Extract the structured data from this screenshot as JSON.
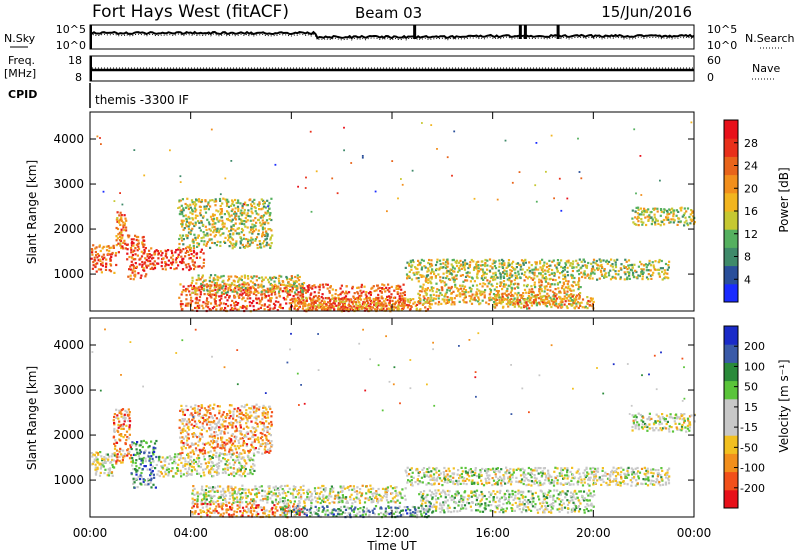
{
  "header": {
    "title": "Fort Hays West (fitACF)",
    "beam": "Beam 03",
    "date": "15/Jun/2016"
  },
  "top_panels": {
    "nsky_label": "N.Sky",
    "nsky_ticks": [
      "10^5",
      "10^0"
    ],
    "nsearch_label": "N.Search",
    "nsearch_ticks": [
      "10^5",
      "10^0"
    ],
    "freq_label_1": "Freq.",
    "freq_label_2": "[MHz]",
    "freq_ticks": [
      "18",
      "8"
    ],
    "nave_label": "Nave",
    "nave_ticks": [
      "60",
      "0"
    ],
    "cpid_label": "CPID",
    "cpid_text": "themis -3300 IF"
  },
  "chart_data": [
    {
      "type": "heatmap",
      "name": "power",
      "ylabel": "Slant Range [km]",
      "ylim": [
        180,
        4600
      ],
      "yticks": [
        1000,
        2000,
        3000,
        4000
      ],
      "xlim_hours": [
        0,
        24
      ],
      "colorbar_label": "Power [dB]",
      "colorbar_ticks": [
        "4",
        "8",
        "12",
        "16",
        "20",
        "24",
        "28"
      ],
      "colorbar_colors": [
        "#1a2bff",
        "#2a4f9a",
        "#3f8a6a",
        "#55b05f",
        "#c6c832",
        "#f2b51f",
        "#f28f1c",
        "#e8641a",
        "#e8301a",
        "#e8101a"
      ],
      "regions": [
        {
          "t0": 0.0,
          "t1": 1.0,
          "r0": 1050,
          "r1": 1700,
          "level": 0.75
        },
        {
          "t0": 1.0,
          "t1": 1.4,
          "r0": 1500,
          "r1": 2400,
          "level": 0.7
        },
        {
          "t0": 1.4,
          "t1": 2.2,
          "r0": 900,
          "r1": 1900,
          "level": 0.8
        },
        {
          "t0": 2.2,
          "t1": 4.5,
          "r0": 1100,
          "r1": 1600,
          "level": 0.85
        },
        {
          "t0": 3.5,
          "t1": 7.2,
          "r0": 1600,
          "r1": 2700,
          "level": 0.45
        },
        {
          "t0": 3.5,
          "t1": 12.5,
          "r0": 200,
          "r1": 800,
          "level": 0.8
        },
        {
          "t0": 4.0,
          "t1": 8.5,
          "r0": 600,
          "r1": 1000,
          "level": 0.5
        },
        {
          "t0": 8.0,
          "t1": 13.5,
          "r0": 200,
          "r1": 500,
          "level": 0.65
        },
        {
          "t0": 12.5,
          "t1": 23.0,
          "r0": 900,
          "r1": 1350,
          "level": 0.45
        },
        {
          "t0": 13.0,
          "t1": 19.5,
          "r0": 350,
          "r1": 900,
          "level": 0.55
        },
        {
          "t0": 16.0,
          "t1": 20.0,
          "r0": 250,
          "r1": 550,
          "level": 0.6
        },
        {
          "t0": 21.5,
          "t1": 24.0,
          "r0": 2100,
          "r1": 2500,
          "level": 0.45
        }
      ]
    },
    {
      "type": "heatmap",
      "name": "velocity",
      "ylabel": "Slant Range [km]",
      "ylim": [
        180,
        4600
      ],
      "yticks": [
        1000,
        2000,
        3000,
        4000
      ],
      "xlim_hours": [
        0,
        24
      ],
      "xticks": [
        "00:00",
        "04:00",
        "08:00",
        "12:00",
        "16:00",
        "20:00",
        "00:00"
      ],
      "xlabel": "Time UT",
      "colorbar_label": "Velocity [m s⁻¹]",
      "colorbar_ticks": [
        "-200",
        "-100",
        "-50",
        "-15",
        "15",
        "50",
        "100",
        "200"
      ],
      "colorbar_colors": [
        "#e8101a",
        "#f2501a",
        "#f28f1c",
        "#f2c020",
        "#c8c8c8",
        "#c8c8c8",
        "#5ac43a",
        "#2a8a3a",
        "#3a5aa8",
        "#1a2bc8"
      ],
      "regions": [
        {
          "t0": 0.0,
          "t1": 1.0,
          "r0": 1100,
          "r1": 1650,
          "level": 0.5
        },
        {
          "t0": 0.9,
          "t1": 1.6,
          "r0": 1400,
          "r1": 2600,
          "level": 0.25
        },
        {
          "t0": 1.6,
          "t1": 2.6,
          "r0": 850,
          "r1": 1900,
          "level": 0.72
        },
        {
          "t0": 2.6,
          "t1": 6.5,
          "r0": 1100,
          "r1": 1600,
          "level": 0.5
        },
        {
          "t0": 3.5,
          "t1": 7.2,
          "r0": 1600,
          "r1": 2700,
          "level": 0.3
        },
        {
          "t0": 4.0,
          "t1": 12.5,
          "r0": 500,
          "r1": 900,
          "level": 0.5
        },
        {
          "t0": 4.0,
          "t1": 8.5,
          "r0": 200,
          "r1": 500,
          "level": 0.25
        },
        {
          "t0": 7.5,
          "t1": 13.5,
          "r0": 200,
          "r1": 450,
          "level": 0.7
        },
        {
          "t0": 12.5,
          "t1": 23.0,
          "r0": 900,
          "r1": 1300,
          "level": 0.5
        },
        {
          "t0": 13.0,
          "t1": 20.0,
          "r0": 300,
          "r1": 800,
          "level": 0.55
        },
        {
          "t0": 21.5,
          "t1": 24.0,
          "r0": 2100,
          "r1": 2500,
          "level": 0.5
        }
      ]
    }
  ]
}
